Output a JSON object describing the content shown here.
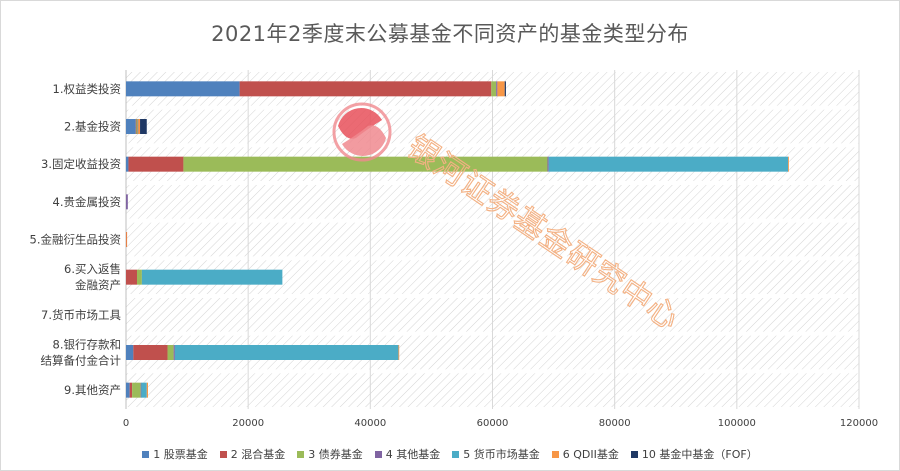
{
  "chart_data": {
    "type": "bar",
    "orientation": "horizontal",
    "stacked": true,
    "title": "2021年2季度末公募基金不同资产的基金类型分布",
    "categories": [
      [
        "1.权益类投资"
      ],
      [
        "2.基金投资"
      ],
      [
        "3.固定收益投资"
      ],
      [
        "4.贵金属投资"
      ],
      [
        "5.金融衍生品投资"
      ],
      [
        "6.买入返售",
        "金融资产"
      ],
      [
        "7.货币市场工具"
      ],
      [
        "8.银行存款和",
        "结算备付金合计"
      ],
      [
        "9.其他资产"
      ]
    ],
    "series": [
      {
        "name": "1 股票基金",
        "color": "#4f81bd",
        "values": [
          18600,
          1600,
          400,
          0,
          0,
          0,
          0,
          1200,
          600
        ]
      },
      {
        "name": "2 混合基金",
        "color": "#c0504d",
        "values": [
          41200,
          100,
          9000,
          0,
          50,
          1800,
          0,
          5600,
          400
        ]
      },
      {
        "name": "3 债券基金",
        "color": "#9bbb59",
        "values": [
          800,
          200,
          59600,
          0,
          0,
          800,
          0,
          1000,
          1400
        ]
      },
      {
        "name": "4 其他基金",
        "color": "#8064a2",
        "values": [
          200,
          100,
          200,
          300,
          0,
          0,
          0,
          200,
          100
        ]
      },
      {
        "name": "5 货币市场基金",
        "color": "#4bacc6",
        "values": [
          0,
          0,
          39200,
          0,
          0,
          23000,
          0,
          36600,
          900
        ]
      },
      {
        "name": "6 QDII基金",
        "color": "#f79646",
        "values": [
          1200,
          300,
          100,
          0,
          50,
          0,
          0,
          100,
          200
        ]
      },
      {
        "name": "10 基金中基金（FOF）",
        "color": "#1f3864",
        "values": [
          200,
          1100,
          0,
          0,
          0,
          0,
          0,
          0,
          0
        ]
      }
    ],
    "xlim": [
      0,
      120000
    ],
    "xticks": [
      "0",
      "20000",
      "40000",
      "60000",
      "80000",
      "100000",
      "120000"
    ],
    "grid": true,
    "legend_position": "bottom"
  },
  "watermark": {
    "text": "银河证券基金研究中心",
    "logo_colors": [
      "#e8505b",
      "#f08a8f"
    ],
    "text_color": "#f4b183"
  }
}
